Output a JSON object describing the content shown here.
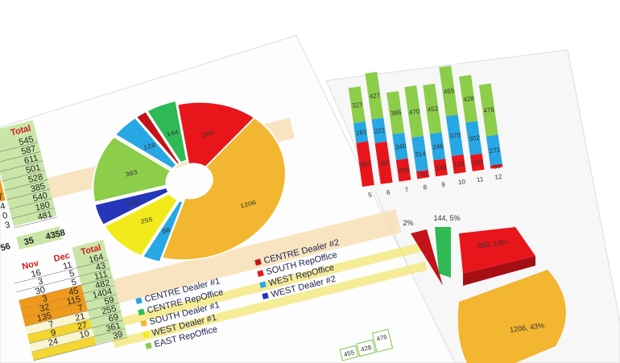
{
  "table_top": {
    "header": "Total",
    "totals": [
      "545",
      "587",
      "611",
      "501",
      "528",
      "385",
      "540",
      "180",
      "481"
    ],
    "left_col": [
      "",
      "",
      "",
      "1",
      "9",
      "7",
      "4",
      "0",
      "3"
    ],
    "footer": [
      "56",
      "35",
      "4358"
    ]
  },
  "table_bottom": {
    "headers": [
      "Nov",
      "Dec",
      "Total"
    ],
    "rows": [
      [
        "16",
        "11",
        "164"
      ],
      [
        "3",
        "5",
        "43"
      ],
      [
        "30",
        "5",
        "111"
      ],
      [
        "3",
        "45",
        "482"
      ],
      [
        "32",
        "115",
        "1404"
      ],
      [
        "135",
        "7",
        "59"
      ],
      [
        "7",
        "21",
        "255"
      ],
      [
        "9",
        "27",
        "69"
      ],
      [
        "24",
        "10",
        "361"
      ],
      [
        "",
        "",
        "39"
      ]
    ]
  },
  "pie_chart": {
    "slices": [
      {
        "value": 390,
        "label": "390",
        "color": "#e8161b"
      },
      {
        "value": 1206,
        "label": "1206",
        "color": "#f2b630"
      },
      {
        "value": 88,
        "label": "88",
        "color": "#27a7e3"
      },
      {
        "value": 255,
        "label": "255",
        "color": "#f2ea1c"
      },
      {
        "value": 125,
        "label": "125",
        "color": "#2636b8"
      },
      {
        "value": 383,
        "label": "383",
        "color": "#8ccd4a"
      },
      {
        "value": 128,
        "label": "128",
        "color": "#27a7e3"
      },
      {
        "value": 54,
        "label": "",
        "color": "#c4121a"
      },
      {
        "value": 144,
        "label": "144",
        "color": "#2fba55"
      }
    ],
    "legend": [
      {
        "label": "CENTRE Dealer #1",
        "color": "#27a7e3"
      },
      {
        "label": "CENTRE RepOffice",
        "color": "#2fba55"
      },
      {
        "label": "SOUTH Dealer #1",
        "color": "#f2b630"
      },
      {
        "label": "WEST Dealer #1",
        "color": "#f2ea1c"
      },
      {
        "label": "EAST RepOffice",
        "color": "#8ccd4a"
      },
      {
        "label": "CENTRE Dealer #2",
        "color": "#c4121a"
      },
      {
        "label": "SOUTH RepOffice",
        "color": "#e8161b"
      },
      {
        "label": "WEST RepOffice",
        "color": "#27a7e3"
      },
      {
        "label": "WEST Dealer #2",
        "color": "#2636b8"
      }
    ]
  },
  "bar_chart": {
    "categories": [
      "5",
      "6",
      "7",
      "8",
      "9",
      "10",
      "11",
      "12"
    ],
    "series": [
      {
        "values": [
          407,
          381,
          200,
          70,
          149,
          165,
          150,
          30
        ],
        "color": "#e8161b"
      },
      {
        "values": [
          183,
          221,
          240,
          314,
          246,
          370,
          302,
          271
        ],
        "color": "#27a7e3"
      },
      {
        "values": [
          327,
          427,
          386,
          470,
          452,
          455,
          428,
          476
        ],
        "color": "#8ccd4a"
      }
    ]
  },
  "pie3d_labels": [
    "2%",
    "144, 5%",
    "390, 14%",
    "1206, 43%"
  ],
  "bottom_bar_labels": [
    "455",
    "428",
    "476"
  ]
}
